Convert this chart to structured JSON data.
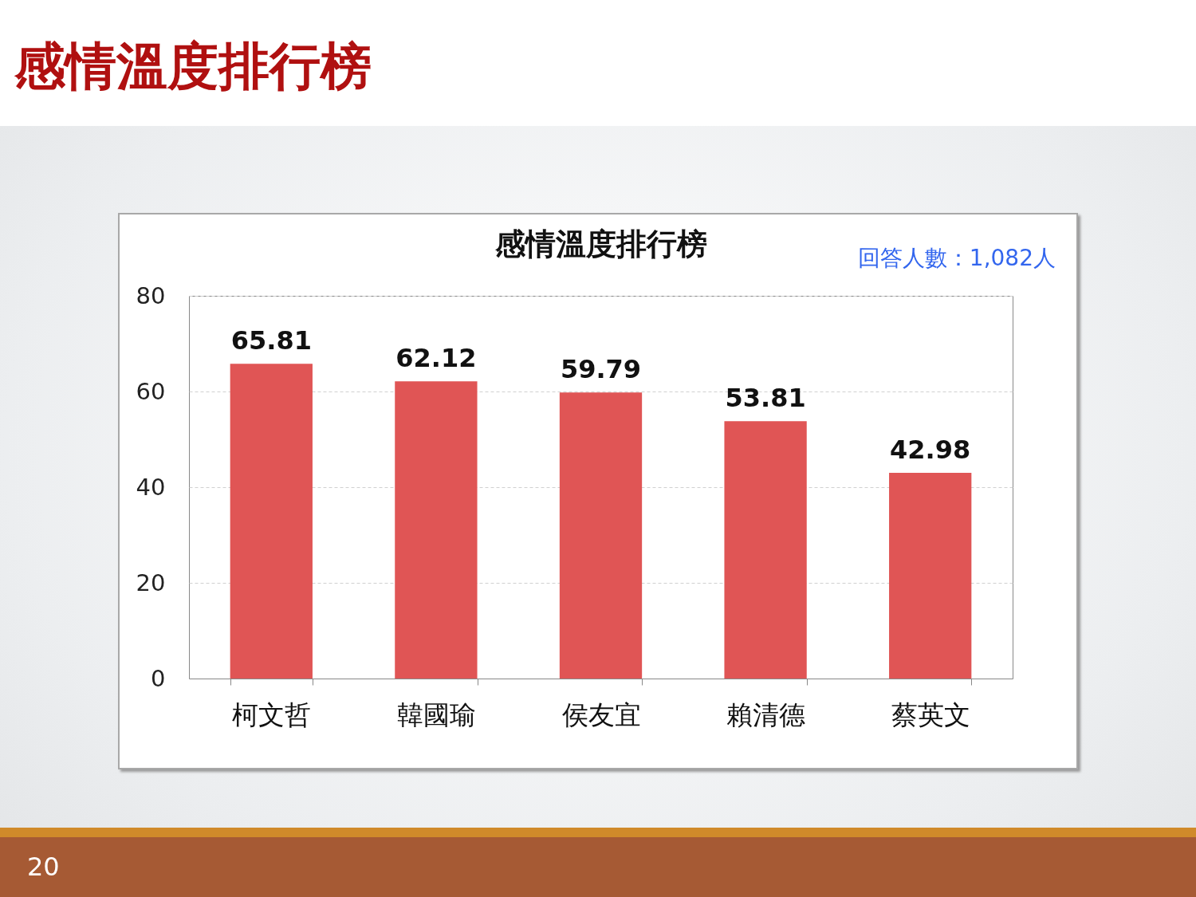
{
  "chart_data": {
    "type": "bar",
    "title": "感情溫度排行榜",
    "categories": [
      "柯文哲",
      "韓國瑜",
      "侯友宜",
      "賴清德",
      "蔡英文"
    ],
    "values": [
      65.81,
      62.12,
      59.79,
      53.81,
      42.98
    ],
    "color": "#e05555",
    "ylim": [
      0,
      80
    ],
    "yticks": [
      0,
      20,
      40,
      60,
      80
    ],
    "grid": "y",
    "data_labels": true,
    "annotations": [
      "感情溫度排行榜",
      "回答人數：1,082人",
      "20"
    ]
  }
}
